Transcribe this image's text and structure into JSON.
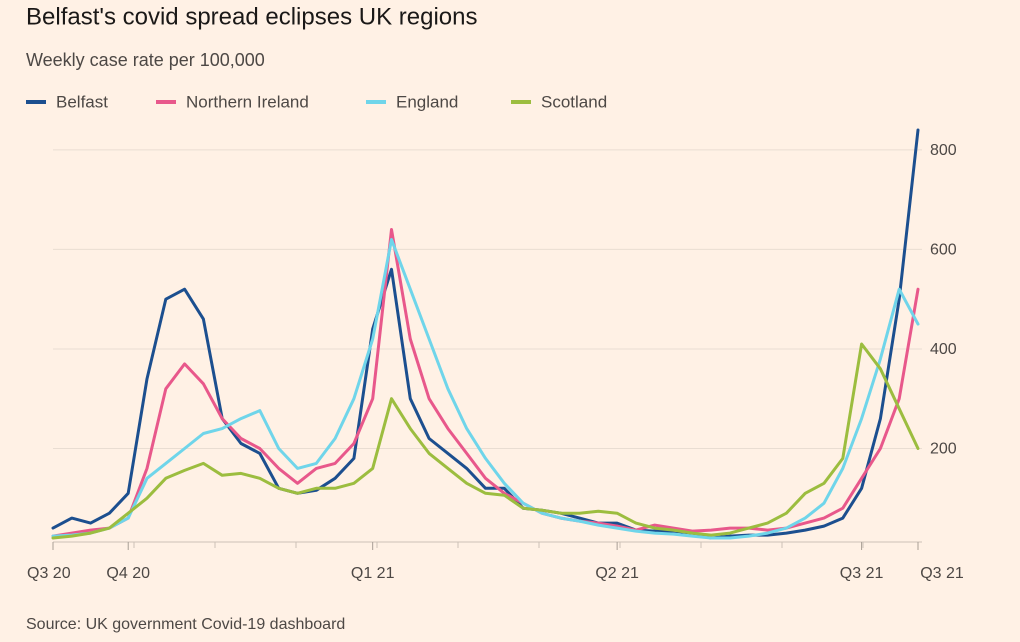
{
  "chart_data": {
    "type": "line",
    "title": "Belfast's covid spread eclipses UK regions",
    "subtitle": "Weekly case rate per 100,000",
    "source": "Source: UK government Covid-19 dashboard",
    "categories": [
      "Q3 20",
      null,
      null,
      null,
      "Q4 20",
      null,
      null,
      null,
      null,
      null,
      null,
      null,
      null,
      null,
      null,
      null,
      null,
      "Q1 21",
      null,
      null,
      null,
      null,
      null,
      null,
      null,
      null,
      null,
      null,
      null,
      null,
      "Q2 21",
      null,
      null,
      null,
      null,
      null,
      null,
      null,
      null,
      null,
      null,
      null,
      null,
      "Q3 21",
      null,
      null,
      "Q3 21"
    ],
    "series": [
      {
        "name": "Belfast",
        "color": "#1c4f8f",
        "values": [
          40,
          60,
          50,
          70,
          110,
          340,
          500,
          520,
          460,
          260,
          210,
          190,
          120,
          110,
          116,
          140,
          180,
          440,
          560,
          300,
          220,
          190,
          160,
          120,
          120,
          80,
          76,
          70,
          60,
          50,
          50,
          36,
          34,
          34,
          30,
          20,
          24,
          26,
          26,
          30,
          36,
          44,
          60,
          120,
          260,
          500,
          840
        ]
      },
      {
        "name": "Northern Ireland",
        "color": "#e8588b",
        "values": [
          24,
          30,
          36,
          40,
          60,
          160,
          320,
          370,
          330,
          260,
          220,
          200,
          160,
          130,
          160,
          170,
          210,
          300,
          640,
          420,
          300,
          240,
          190,
          140,
          110,
          90,
          70,
          60,
          54,
          50,
          44,
          36,
          46,
          40,
          34,
          36,
          40,
          40,
          36,
          40,
          50,
          60,
          80,
          140,
          200,
          300,
          520
        ]
      },
      {
        "name": "England",
        "color": "#6fd5ea",
        "values": [
          24,
          26,
          30,
          40,
          60,
          140,
          170,
          200,
          230,
          240,
          260,
          276,
          200,
          160,
          170,
          220,
          300,
          420,
          620,
          520,
          420,
          320,
          240,
          180,
          130,
          90,
          70,
          60,
          54,
          46,
          40,
          34,
          30,
          28,
          24,
          20,
          20,
          24,
          30,
          40,
          60,
          90,
          160,
          260,
          380,
          520,
          450
        ]
      },
      {
        "name": "Scotland",
        "color": "#9cbd3f",
        "values": [
          20,
          24,
          30,
          40,
          70,
          100,
          140,
          156,
          170,
          146,
          150,
          140,
          120,
          110,
          120,
          120,
          130,
          160,
          300,
          240,
          190,
          160,
          130,
          110,
          106,
          80,
          76,
          70,
          70,
          74,
          70,
          50,
          40,
          36,
          30,
          26,
          30,
          40,
          50,
          70,
          110,
          130,
          180,
          410,
          360,
          280,
          200
        ]
      }
    ],
    "ylim": [
      0,
      850
    ],
    "yticks": [
      200,
      400,
      600,
      800
    ],
    "grid": true
  }
}
